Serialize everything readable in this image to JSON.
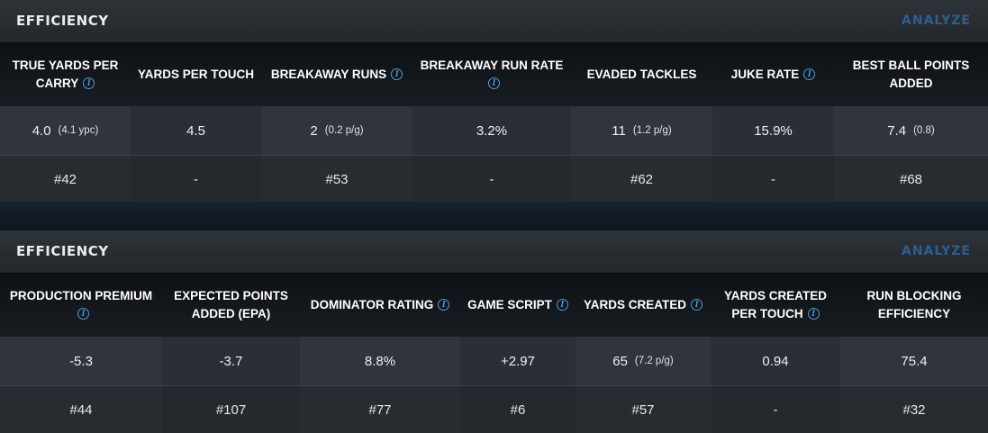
{
  "panels": [
    {
      "title": "EFFICIENCY",
      "analyze_label": "ANALYZE",
      "columns": [
        {
          "label": "TRUE YARDS PER CARRY",
          "info": true,
          "value": "4.0",
          "sub": "(4.1 ypc)",
          "rank": "#42"
        },
        {
          "label": "YARDS PER TOUCH",
          "info": false,
          "value": "4.5",
          "sub": "",
          "rank": "-"
        },
        {
          "label": "BREAKAWAY RUNS",
          "info": true,
          "value": "2",
          "sub": "(0.2 p/g)",
          "rank": "#53"
        },
        {
          "label": "BREAKAWAY RUN RATE",
          "info": true,
          "value": "3.2%",
          "sub": "",
          "rank": "-"
        },
        {
          "label": "EVADED TACKLES",
          "info": false,
          "value": "11",
          "sub": "(1.2 p/g)",
          "rank": "#62"
        },
        {
          "label": "JUKE RATE",
          "info": true,
          "value": "15.9%",
          "sub": "",
          "rank": "-"
        },
        {
          "label": "BEST BALL POINTS ADDED",
          "info": false,
          "value": "7.4",
          "sub": "(0.8)",
          "rank": "#68"
        }
      ]
    },
    {
      "title": "EFFICIENCY",
      "analyze_label": "ANALYZE",
      "columns": [
        {
          "label": "PRODUCTION PREMIUM",
          "info": true,
          "value": "-5.3",
          "sub": "",
          "rank": "#44"
        },
        {
          "label": "EXPECTED POINTS ADDED (EPA)",
          "info": false,
          "value": "-3.7",
          "sub": "",
          "rank": "#107"
        },
        {
          "label": "DOMINATOR RATING",
          "info": true,
          "value": "8.8%",
          "sub": "",
          "rank": "#77"
        },
        {
          "label": "GAME SCRIPT",
          "info": true,
          "value": "+2.97",
          "sub": "",
          "rank": "#6"
        },
        {
          "label": "YARDS CREATED",
          "info": true,
          "value": "65",
          "sub": "(7.2 p/g)",
          "rank": "#57"
        },
        {
          "label": "YARDS CREATED PER TOUCH",
          "info": true,
          "value": "0.94",
          "sub": "",
          "rank": "-"
        },
        {
          "label": "RUN BLOCKING EFFICIENCY",
          "info": false,
          "value": "75.4",
          "sub": "",
          "rank": "#32"
        }
      ]
    }
  ],
  "colors": {
    "accent_link": "#2b5f93",
    "info_icon": "#4a9de0",
    "background": "#121a22"
  },
  "icons": {
    "info": "info-icon"
  }
}
